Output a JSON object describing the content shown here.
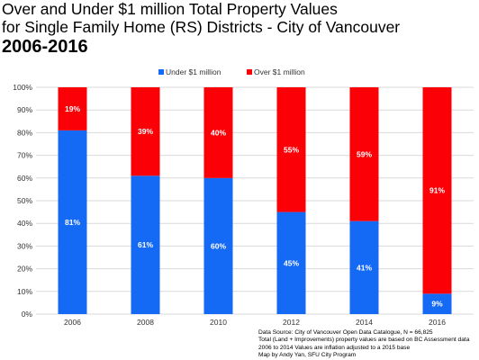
{
  "chart_data": {
    "type": "bar",
    "stacked": true,
    "title_lines": [
      "Over and Under $1 million Total Property Values",
      "for Single Family Home (RS) Districts - City of Vancouver"
    ],
    "subtitle": "2006-2016",
    "xlabel": "",
    "ylabel": "",
    "categories": [
      "2006",
      "2008",
      "2010",
      "2012",
      "2014",
      "2016"
    ],
    "series": [
      {
        "name": "Under $1 million",
        "color": "#1469F5",
        "values": [
          81,
          61,
          60,
          45,
          41,
          9
        ],
        "labels": [
          "81%",
          "61%",
          "60%",
          "45%",
          "41%",
          "9%"
        ]
      },
      {
        "name": "Over $1 million",
        "color": "#FB0007",
        "values": [
          19,
          39,
          40,
          55,
          59,
          91
        ],
        "labels": [
          "19%",
          "39%",
          "40%",
          "55%",
          "59%",
          "91%"
        ]
      }
    ],
    "ylim": [
      0,
      100
    ],
    "yticks": [
      "0%",
      "10%",
      "20%",
      "30%",
      "40%",
      "50%",
      "60%",
      "70%",
      "80%",
      "90%",
      "100%"
    ],
    "grid": true,
    "legend_position": "top-center"
  },
  "source_note": [
    "Data Source: City of Vancouver Open Data Catalogue, N = 66,825",
    "Total (Land + Improvements) property values are based on BC Assessment data",
    "2006 to 2014 Values are inflation adjusted to a 2015 base",
    "Map by Andy Yan, SFU City Program"
  ]
}
